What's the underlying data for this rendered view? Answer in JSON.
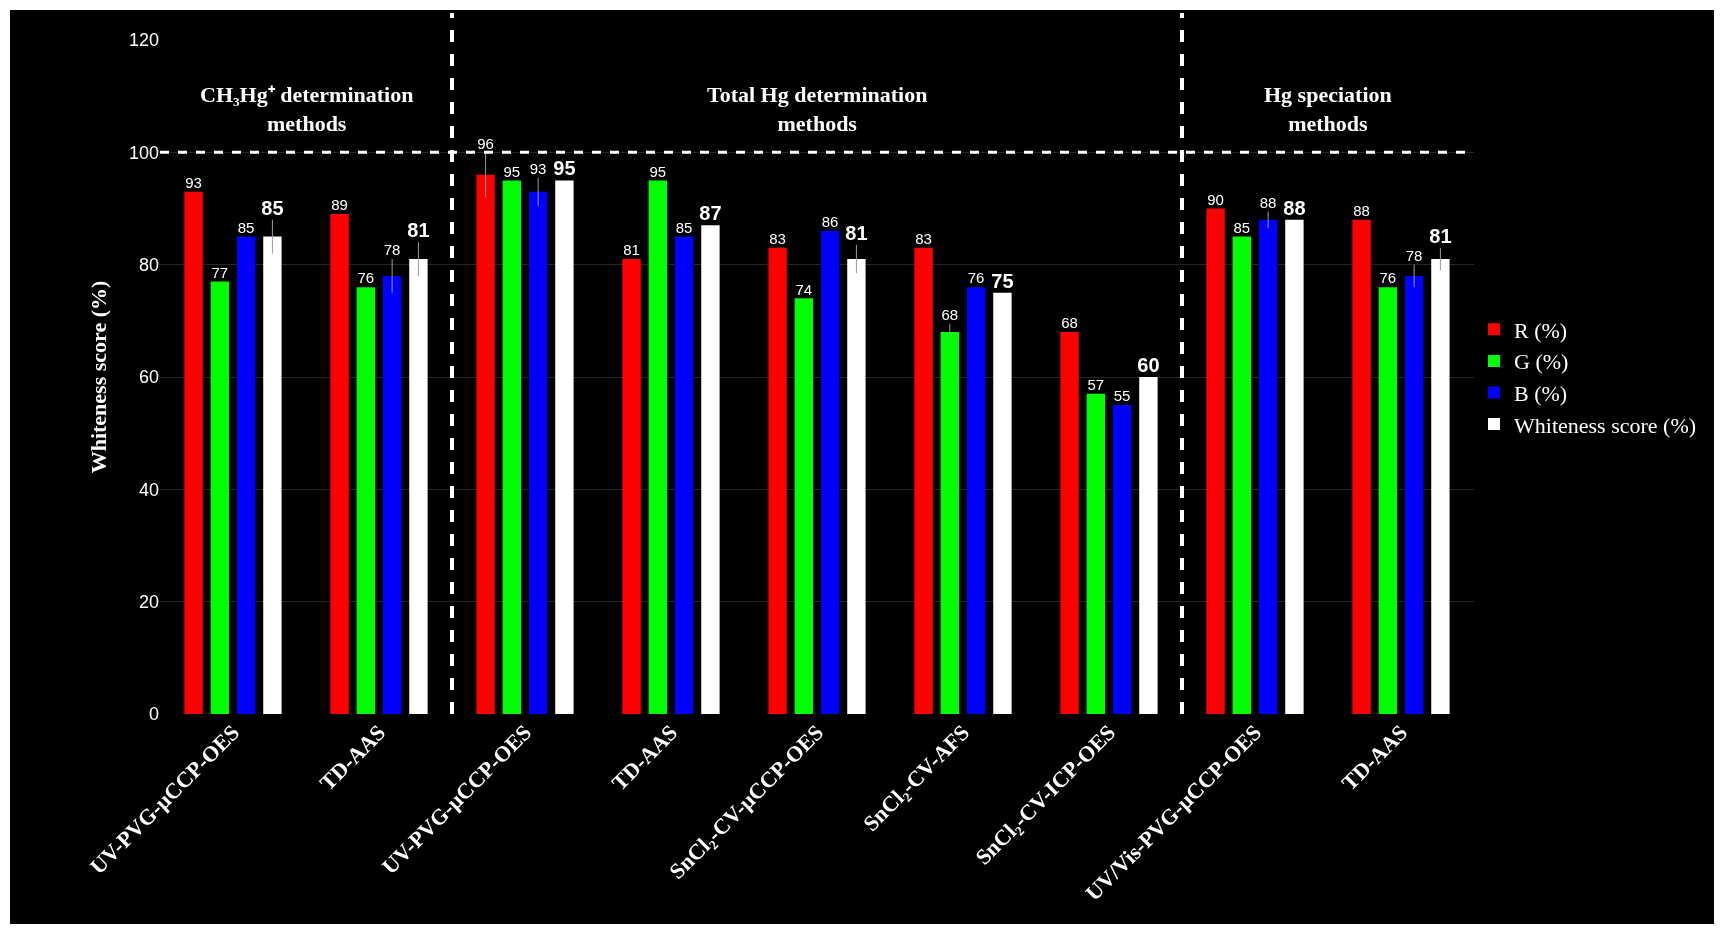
{
  "chart_data": {
    "type": "bar",
    "categories": [
      "UV-PVG-µCCP-OES",
      "TD-AAS",
      "UV-PVG-µCCP-OES",
      "TD-AAS",
      "SnCl₂-CV-µCCP-OES",
      "SnCl₂-CV-AFS",
      "SnCl₂-CV-ICP-OES",
      "UV/Vis-PVG-µCCP-OES",
      "TD-AAS"
    ],
    "series": [
      {
        "name": "R (%)",
        "color": "#ff0000",
        "values": [
          93,
          89,
          96,
          81,
          83,
          83,
          68,
          90,
          88
        ],
        "errors": [
          null,
          null,
          4,
          null,
          null,
          null,
          null,
          null,
          null
        ]
      },
      {
        "name": "G (%)",
        "color": "#00ff00",
        "values": [
          77,
          76,
          95,
          95,
          74,
          68,
          57,
          85,
          76
        ],
        "errors": [
          null,
          null,
          null,
          null,
          null,
          1.5,
          null,
          null,
          null
        ]
      },
      {
        "name": "B (%)",
        "color": "#0000ff",
        "values": [
          85,
          78,
          93,
          85,
          86,
          76,
          55,
          88,
          78
        ],
        "errors": [
          null,
          3,
          2.5,
          null,
          null,
          null,
          null,
          1.5,
          2
        ]
      },
      {
        "name": "Whiteness score (%)",
        "color": "#ffffff",
        "values": [
          85,
          81,
          95,
          87,
          81,
          75,
          60,
          88,
          81
        ],
        "errors": [
          3,
          3,
          null,
          null,
          2.5,
          null,
          null,
          null,
          2
        ]
      }
    ],
    "ylabel": "Whiteness score (%)",
    "ylim": [
      0,
      120
    ],
    "yticks": [
      0,
      20,
      40,
      60,
      80,
      100,
      120
    ],
    "grid": "y",
    "legend": "right",
    "data_labels": true,
    "ref_lines": [
      {
        "axis": "y",
        "value": 100,
        "color": "#ffffff",
        "line_style": "dashed"
      }
    ],
    "annotations": [
      "CH₃Hg⁺ determination methods",
      "Total Hg determination methods",
      "Hg speciation methods"
    ]
  }
}
